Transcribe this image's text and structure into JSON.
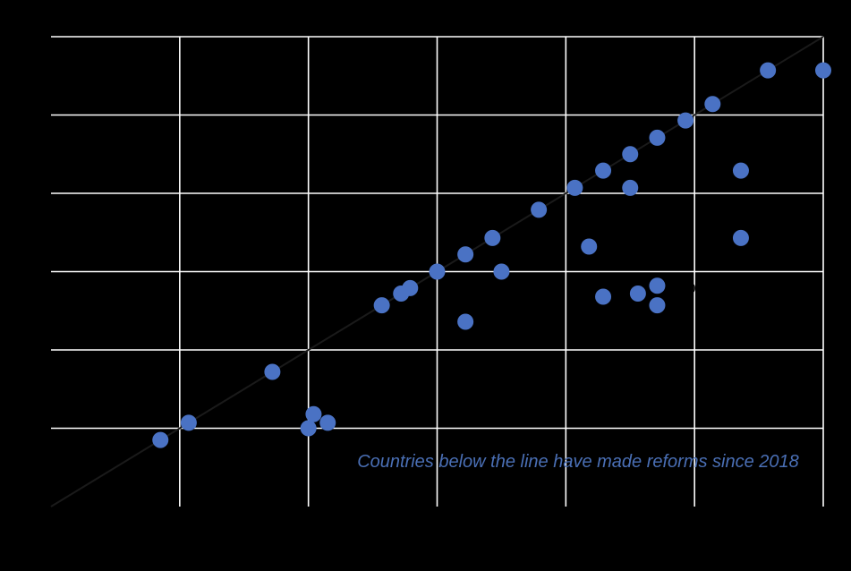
{
  "chart_data": {
    "type": "scatter",
    "title": "",
    "xlabel": "",
    "ylabel": "",
    "xlim": [
      0,
      6
    ],
    "ylim": [
      0,
      6
    ],
    "grid": true,
    "legend": "none",
    "reference_line": {
      "from": [
        0,
        0
      ],
      "to": [
        6,
        6
      ],
      "color": "#1a1a1a"
    },
    "point_color": "#4a72c4",
    "background_color": "#000000",
    "grid_color": "#ffffff",
    "annotation": {
      "text": "Countries below the line have made reforms since 2018",
      "color": "#4a6fb5"
    },
    "point_labels": [
      {
        "text": "0",
        "x": 4.98,
        "y": 2.73
      }
    ],
    "series": [
      {
        "points": [
          [
            0.85,
            0.85
          ],
          [
            1.07,
            1.07
          ],
          [
            1.72,
            1.72
          ],
          [
            2.0,
            1.0
          ],
          [
            2.04,
            1.18
          ],
          [
            2.15,
            1.07
          ],
          [
            2.57,
            2.57
          ],
          [
            2.72,
            2.72
          ],
          [
            2.79,
            2.79
          ],
          [
            3.0,
            3.0
          ],
          [
            3.22,
            3.22
          ],
          [
            3.22,
            2.36
          ],
          [
            3.43,
            3.43
          ],
          [
            3.5,
            3.0
          ],
          [
            3.79,
            3.79
          ],
          [
            4.07,
            4.07
          ],
          [
            4.18,
            3.32
          ],
          [
            4.29,
            4.29
          ],
          [
            4.29,
            2.68
          ],
          [
            4.5,
            4.5
          ],
          [
            4.5,
            4.07
          ],
          [
            4.56,
            2.72
          ],
          [
            4.71,
            4.71
          ],
          [
            4.71,
            2.82
          ],
          [
            4.71,
            2.57
          ],
          [
            4.93,
            4.93
          ],
          [
            5.14,
            5.14
          ],
          [
            5.36,
            4.29
          ],
          [
            5.36,
            3.43
          ],
          [
            5.57,
            5.57
          ],
          [
            6.0,
            5.57
          ]
        ]
      }
    ]
  }
}
